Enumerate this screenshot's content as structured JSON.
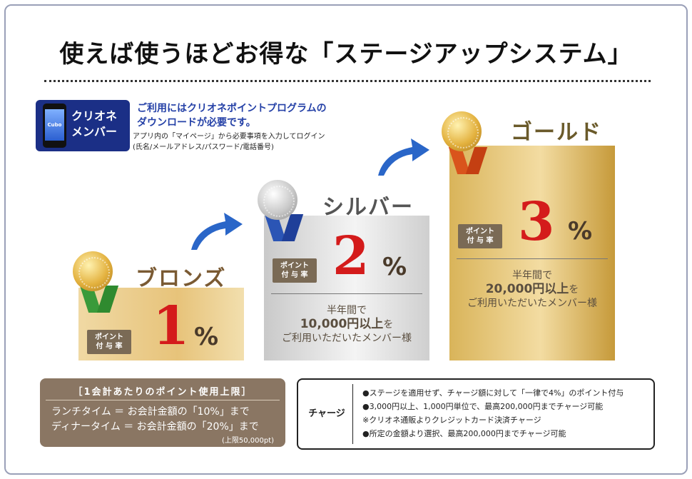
{
  "title": "使えば使うほどお得な「ステージアップシステム」",
  "app_badge": {
    "icon_label": "Cubo",
    "name_line1": "クリオネ",
    "name_line2": "メンバー"
  },
  "notice": {
    "main_line1": "ご利用にはクリオネポイントプログラムの",
    "main_line2": "ダウンロードが必要です。",
    "sub_line1": "アプリ内の「マイページ」から必要事項を入力してログイン",
    "sub_line2": "(氏名/メールアドレス/パスワード/電話番号)"
  },
  "tiers": {
    "bronze": {
      "name": "ブロンズ",
      "rate_label_1": "ポイント",
      "rate_label_2": "付 与 率",
      "rate": "1",
      "unit": "%"
    },
    "silver": {
      "name": "シルバー",
      "rate_label_1": "ポイント",
      "rate_label_2": "付 与 率",
      "rate": "2",
      "unit": "%",
      "req_1": "半年間で",
      "req_amount": "10,000円以上",
      "req_2": "を",
      "req_3": "ご利用いただいたメンバー様"
    },
    "gold": {
      "name": "ゴールド",
      "rate_label_1": "ポイント",
      "rate_label_2": "付 与 率",
      "rate": "3",
      "unit": "%",
      "req_1": "半年間で",
      "req_amount": "20,000円以上",
      "req_2": "を",
      "req_3": "ご利用いただいたメンバー様"
    }
  },
  "limit": {
    "heading": "［1会計あたりのポイント使用上限］",
    "lunch": "ランチタイム ＝ お会計金額の「10%」まで",
    "dinner": "ディナータイム ＝ お会計金額の「20%」まで",
    "note": "(上限50,000pt)"
  },
  "charge": {
    "label": "チャージ",
    "lines": [
      "●ステージを適用せず、チャージ額に対して「一律で4%」のポイント付与",
      "●3,000円以上、1,000円単位で、最高200,000円までチャージ可能",
      "※クリオネ通販よりクレジットカード決済チャージ",
      "●所定の金額より選択、最高200,000円までチャージ可能"
    ]
  },
  "colors": {
    "accent_red": "#d41b1b",
    "notice_blue": "#2541a7",
    "badge_navy": "#1b2f86",
    "arrow_blue": "#2a66c8",
    "limit_brown": "#8a7663"
  }
}
